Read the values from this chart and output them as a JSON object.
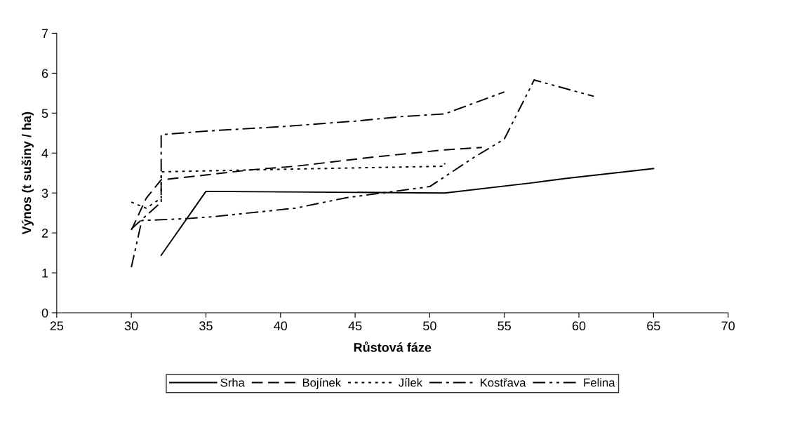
{
  "chart_data": {
    "type": "line",
    "xlabel": "Růstová fáze",
    "ylabel": "Výnos (t sušiny / ha)",
    "xlim": [
      25,
      70
    ],
    "xticks": [
      25,
      30,
      35,
      40,
      45,
      50,
      55,
      60,
      65,
      70
    ],
    "ylim": [
      0,
      7
    ],
    "yticks": [
      0,
      1,
      2,
      3,
      4,
      5,
      6,
      7
    ],
    "grid": false,
    "legend": "bottom",
    "marker": "none",
    "series": [
      {
        "name": "Srha",
        "color": "#000000",
        "line_style": "solid",
        "x": [
          32,
          35,
          51,
          57,
          59,
          65
        ],
        "values": [
          1.44,
          3.04,
          3.0,
          3.26,
          3.36,
          3.61
        ]
      },
      {
        "name": "Bojínek",
        "color": "#000000",
        "line_style": "dashed",
        "x": [
          30,
          31,
          32,
          35,
          38,
          41,
          46,
          51,
          53.5
        ],
        "values": [
          2.07,
          2.87,
          3.33,
          3.45,
          3.58,
          3.67,
          3.89,
          4.08,
          4.14
        ]
      },
      {
        "name": "Jílek",
        "color": "#000000",
        "line_style": "dotted",
        "x": [
          30,
          31,
          32,
          32,
          41,
          51,
          51
        ],
        "values": [
          2.77,
          2.62,
          2.87,
          3.53,
          3.6,
          3.67,
          3.75
        ]
      },
      {
        "name": "Kostřava",
        "color": "#000000",
        "line_style": "dashdot",
        "x": [
          30,
          32,
          32,
          35,
          40,
          45,
          48,
          51,
          55
        ],
        "values": [
          2.1,
          2.77,
          4.46,
          4.55,
          4.66,
          4.8,
          4.91,
          4.98,
          5.53
        ]
      },
      {
        "name": "Felina",
        "color": "#000000",
        "line_style": "dashdotdot",
        "x": [
          30,
          30.7,
          33.8,
          35.6,
          41,
          44.4,
          50,
          53,
          55,
          57,
          61
        ],
        "values": [
          1.14,
          2.31,
          2.36,
          2.41,
          2.62,
          2.88,
          3.16,
          3.9,
          4.35,
          5.83,
          5.42
        ]
      }
    ]
  }
}
